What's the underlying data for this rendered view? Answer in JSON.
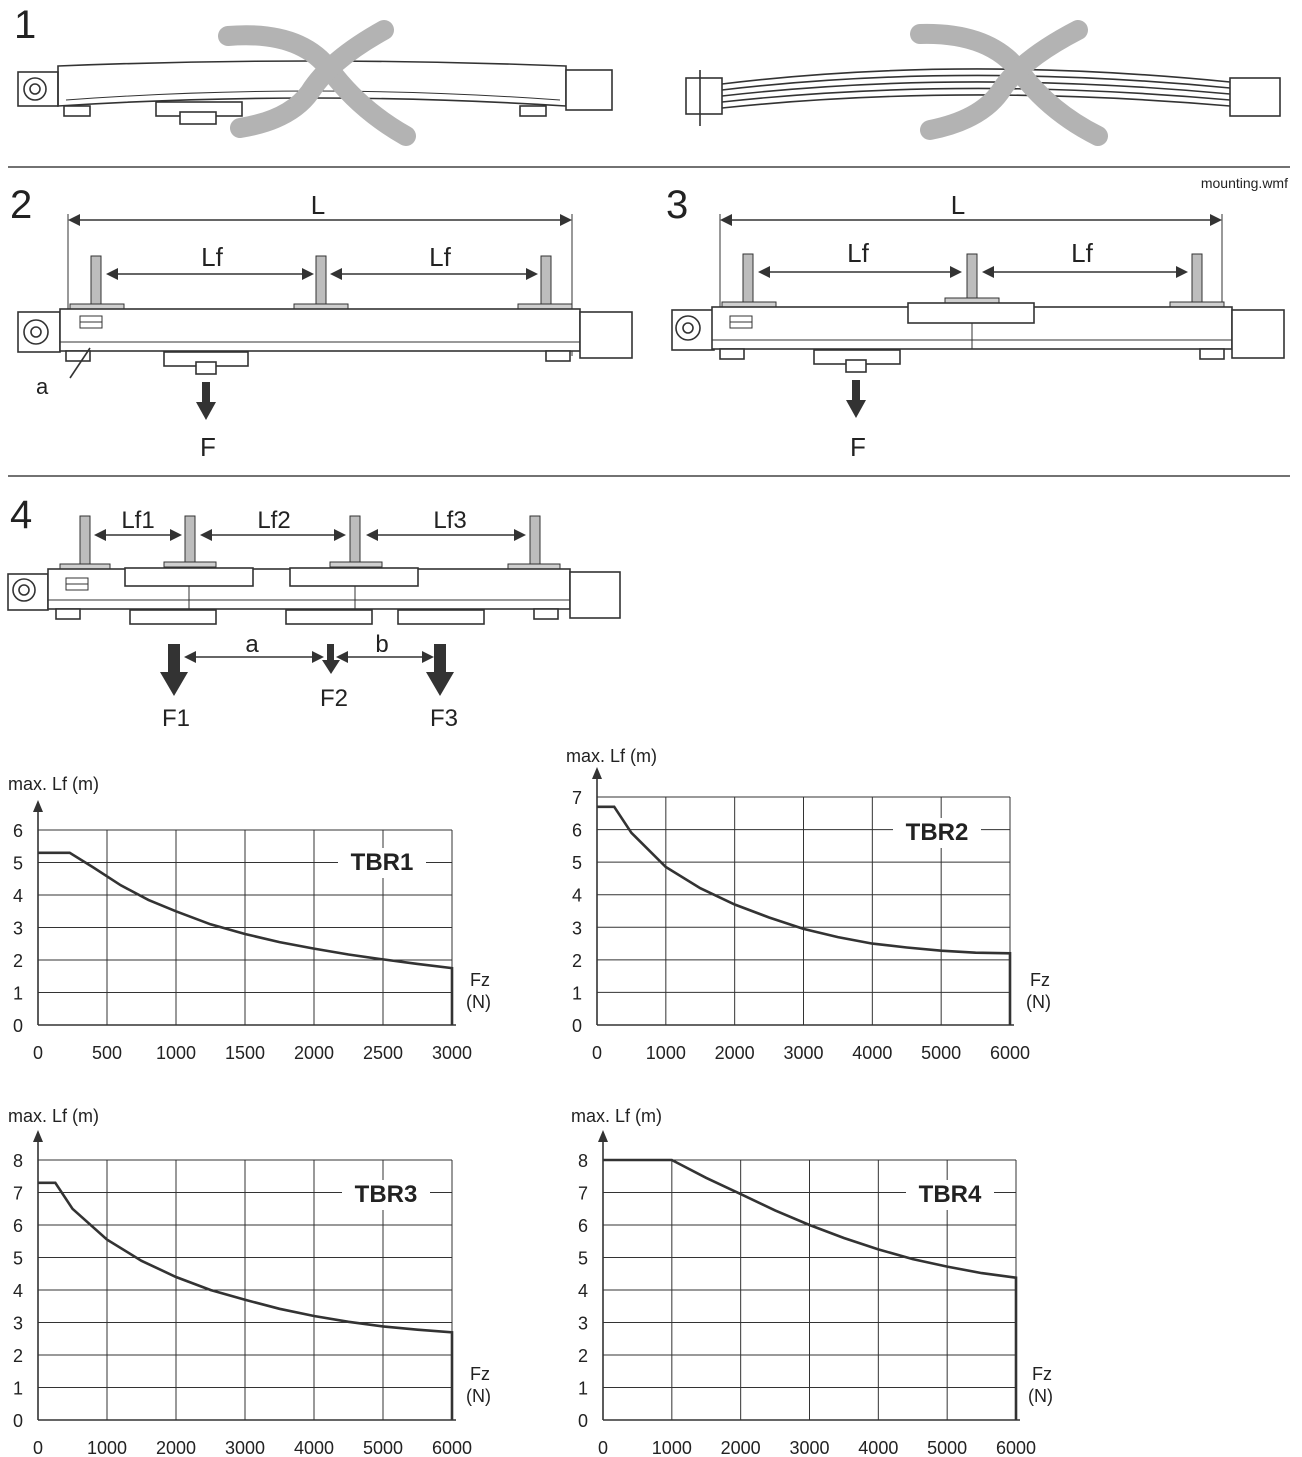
{
  "source_label": "mounting.wmf",
  "sections": [
    {
      "number": "1"
    },
    {
      "number": "2",
      "L": "L",
      "Lf_left": "Lf",
      "Lf_right": "Lf",
      "force": "F",
      "label_a": "a"
    },
    {
      "number": "3",
      "L": "L",
      "Lf_left": "Lf",
      "Lf_right": "Lf",
      "force": "F"
    },
    {
      "number": "4",
      "Lf1": "Lf1",
      "Lf2": "Lf2",
      "Lf3": "Lf3",
      "dist_a": "a",
      "dist_b": "b",
      "F1": "F1",
      "F2": "F2",
      "F3": "F3"
    }
  ],
  "colors": {
    "line": "#333333",
    "cross": "#b3b3b3",
    "post": "#bdbdbd"
  },
  "chart_data": [
    {
      "type": "line",
      "title": "TBR1",
      "ylabel": "max. Lf (m)",
      "xlabel": "Fz",
      "xunit": "(N)",
      "xlim": [
        0,
        3000
      ],
      "ylim": [
        0,
        6
      ],
      "xticks": [
        "0",
        "500",
        "1000",
        "1500",
        "2000",
        "2500",
        "3000"
      ],
      "yticks": [
        "0",
        "1",
        "2",
        "3",
        "4",
        "5",
        "6"
      ],
      "grid": true,
      "series": [
        {
          "x": [
            0,
            230,
            400,
            600,
            800,
            1000,
            1250,
            1500,
            1750,
            2000,
            2250,
            2500,
            2750,
            3000,
            3000
          ],
          "y": [
            5.3,
            5.3,
            4.85,
            4.3,
            3.85,
            3.5,
            3.1,
            2.8,
            2.55,
            2.35,
            2.17,
            2.02,
            1.88,
            1.75,
            0
          ]
        }
      ]
    },
    {
      "type": "line",
      "title": "TBR2",
      "ylabel": "max. Lf (m)",
      "xlabel": "Fz",
      "xunit": "(N)",
      "xlim": [
        0,
        6000
      ],
      "ylim": [
        0,
        7
      ],
      "xticks": [
        "0",
        "1000",
        "2000",
        "3000",
        "4000",
        "5000",
        "6000"
      ],
      "yticks": [
        "0",
        "1",
        "2",
        "3",
        "4",
        "5",
        "6",
        "7"
      ],
      "grid": true,
      "series": [
        {
          "x": [
            0,
            250,
            500,
            1000,
            1500,
            2000,
            2500,
            3000,
            3500,
            4000,
            4500,
            5000,
            5500,
            6000,
            6000
          ],
          "y": [
            6.7,
            6.7,
            5.9,
            4.85,
            4.2,
            3.7,
            3.3,
            2.95,
            2.7,
            2.5,
            2.38,
            2.28,
            2.22,
            2.2,
            0
          ]
        }
      ]
    },
    {
      "type": "line",
      "title": "TBR3",
      "ylabel": "max. Lf (m)",
      "xlabel": "Fz",
      "xunit": "(N)",
      "xlim": [
        0,
        6000
      ],
      "ylim": [
        0,
        8
      ],
      "xticks": [
        "0",
        "1000",
        "2000",
        "3000",
        "4000",
        "5000",
        "6000"
      ],
      "yticks": [
        "0",
        "1",
        "2",
        "3",
        "4",
        "5",
        "6",
        "7",
        "8"
      ],
      "grid": true,
      "series": [
        {
          "x": [
            0,
            250,
            500,
            1000,
            1500,
            2000,
            2500,
            3000,
            3500,
            4000,
            4500,
            5000,
            5500,
            6000,
            6000
          ],
          "y": [
            7.3,
            7.3,
            6.5,
            5.55,
            4.9,
            4.4,
            4.0,
            3.7,
            3.42,
            3.2,
            3.02,
            2.88,
            2.78,
            2.7,
            0
          ]
        }
      ]
    },
    {
      "type": "line",
      "title": "TBR4",
      "ylabel": "max. Lf (m)",
      "xlabel": "Fz",
      "xunit": "(N)",
      "xlim": [
        0,
        6000
      ],
      "ylim": [
        0,
        8
      ],
      "xticks": [
        "0",
        "1000",
        "2000",
        "3000",
        "4000",
        "5000",
        "6000"
      ],
      "yticks": [
        "0",
        "1",
        "2",
        "3",
        "4",
        "5",
        "6",
        "7",
        "8"
      ],
      "grid": true,
      "series": [
        {
          "x": [
            0,
            1000,
            1500,
            2000,
            2500,
            3000,
            3500,
            4000,
            4500,
            5000,
            5500,
            6000,
            6000
          ],
          "y": [
            8,
            8,
            7.45,
            6.95,
            6.45,
            6.0,
            5.6,
            5.25,
            4.95,
            4.72,
            4.52,
            4.38,
            0
          ]
        }
      ]
    }
  ]
}
